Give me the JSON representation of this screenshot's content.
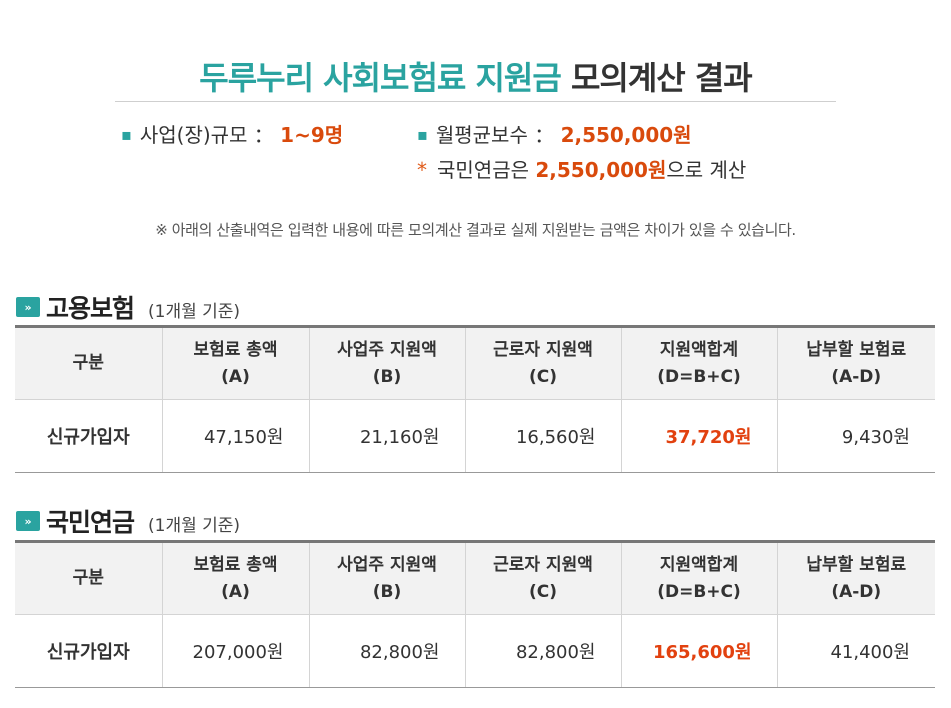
{
  "title": {
    "accent": "두루누리 사회보험료 지원금",
    "rest": "모의계산 결과"
  },
  "summary": {
    "size_label": "사업(장)규모 ：",
    "size_value": "1~9명",
    "wage_label": "월평균보수 ：",
    "wage_value": "2,550,000원",
    "pension_label": "국민연금은",
    "pension_value": "2,550,000원",
    "pension_suffix": "으로 계산",
    "star": "*",
    "bullet": "▪"
  },
  "notice": "※ 아래의 산출내역은 입력한 내용에 따른 모의계산 결과로 실제 지원받는 금액은 차이가 있을 수 있습니다.",
  "colors": {
    "accent": "#2aa3a0",
    "highlight": "#e2410f",
    "value": "#d94a0c"
  },
  "sections": [
    {
      "icon": "»",
      "title": "고용보험",
      "subtitle": "(1개월 기준)",
      "headers": [
        {
          "l1": "구분",
          "l2": ""
        },
        {
          "l1": "보험료 총액",
          "l2": "(A)"
        },
        {
          "l1": "사업주 지원액",
          "l2": "(B)"
        },
        {
          "l1": "근로자 지원액",
          "l2": "(C)"
        },
        {
          "l1": "지원액합계",
          "l2": "(D=B+C)"
        },
        {
          "l1": "납부할 보험료",
          "l2": "(A-D)"
        }
      ],
      "row": {
        "label": "신규가입자",
        "total": "47,150원",
        "employer": "21,160원",
        "employee": "16,560원",
        "sum": "37,720원",
        "pay": "9,430원"
      }
    },
    {
      "icon": "»",
      "title": "국민연금",
      "subtitle": "(1개월 기준)",
      "headers": [
        {
          "l1": "구분",
          "l2": ""
        },
        {
          "l1": "보험료 총액",
          "l2": "(A)"
        },
        {
          "l1": "사업주 지원액",
          "l2": "(B)"
        },
        {
          "l1": "근로자 지원액",
          "l2": "(C)"
        },
        {
          "l1": "지원액합계",
          "l2": "(D=B+C)"
        },
        {
          "l1": "납부할 보험료",
          "l2": "(A-D)"
        }
      ],
      "row": {
        "label": "신규가입자",
        "total": "207,000원",
        "employer": "82,800원",
        "employee": "82,800원",
        "sum": "165,600원",
        "pay": "41,400원"
      }
    }
  ]
}
